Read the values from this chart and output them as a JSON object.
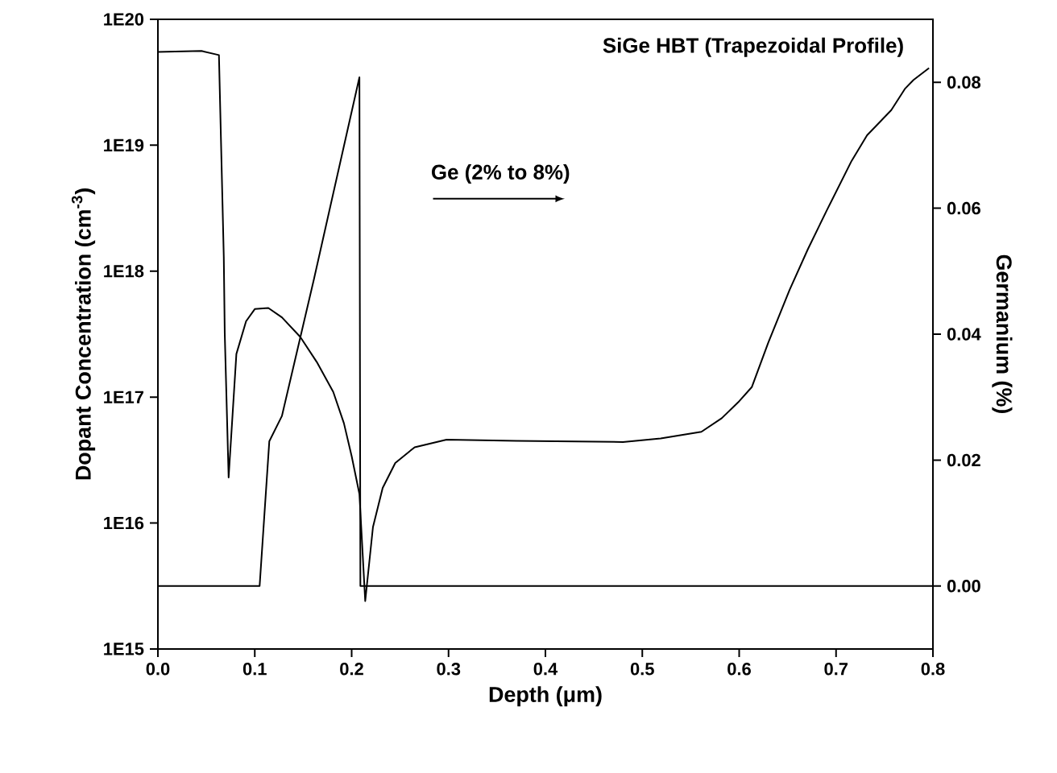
{
  "chart_data": {
    "type": "line",
    "title": "SiGe HBT (Trapezoidal Profile)",
    "xlabel": "Depth (μm)",
    "ylabel": "Dopant Concentration (cm$^{-3}$)",
    "y2label": "Germanium (%)",
    "annotations": [
      "Ge (2% to 8%)"
    ],
    "log": "y",
    "line_style": "solid",
    "xlim": [
      0,
      0.8
    ],
    "xticks": [
      {
        "value": 0,
        "label": "0.0"
      },
      0.1,
      0.2,
      0.3,
      0.4,
      0.5,
      0.6,
      0.7,
      0.8
    ],
    "ylim": [
      1000000000000000.0,
      1e+20
    ],
    "yticks": [
      {
        "value": 1000000000000000.0,
        "label": "1E15"
      },
      {
        "value": 1e+16,
        "label": "1E16"
      },
      {
        "value": 1e+17,
        "label": "1E17"
      },
      {
        "value": 1e+18,
        "label": "1E18"
      },
      {
        "value": 1e+19,
        "label": "1E19"
      },
      {
        "value": 1e+20,
        "label": "1E20"
      }
    ],
    "y2lim": [
      -0.01,
      0.09
    ],
    "y2ticks": [
      {
        "value": 0,
        "label": "0.00"
      },
      0.02,
      0.04,
      0.06,
      0.08
    ],
    "series": [
      {
        "color": "#000000",
        "x": [
          0,
          0.045,
          0.063,
          0.068,
          0.069,
          0.073,
          0.081,
          0.091,
          0.1,
          0.114,
          0.128,
          0.147,
          0.164,
          0.181,
          0.192,
          0.2,
          0.208,
          0.214,
          0.222,
          0.232,
          0.245,
          0.265,
          0.298,
          0.37,
          0.48,
          0.519,
          0.561,
          0.582,
          0.599,
          0.613,
          0.63,
          0.652,
          0.671,
          0.691,
          0.716,
          0.732,
          0.757,
          0.771,
          0.78,
          0.796
        ],
        "values": [
          5.5e+19,
          5.6e+19,
          5.2e+19,
          1.3e+18,
          3.2e+17,
          2.3e+16,
          2.2e+17,
          4e+17,
          5e+17,
          5.1e+17,
          4.3e+17,
          3e+17,
          1.9e+17,
          1.1e+17,
          6.2e+16,
          3.4e+16,
          1.7e+16,
          2400000000000000.0,
          9300000000000000.0,
          1.9e+16,
          3e+16,
          4e+16,
          4.6e+16,
          4.5e+16,
          4.4e+16,
          4.7e+16,
          5.3e+16,
          6.8e+16,
          9.1e+16,
          1.2e+17,
          2.7e+17,
          7.1e+17,
          1.5e+18,
          3.1e+18,
          7.5e+18,
          1.2e+19,
          1.9e+19,
          2.8e+19,
          3.3e+19,
          4.1e+19
        ]
      },
      {
        "color": "#000000",
        "axis": "y2",
        "x": [
          0,
          0.105,
          0.115,
          0.128,
          0.161,
          0.208,
          0.209,
          0.8
        ],
        "values": [
          0,
          0,
          0.023,
          0.027,
          0.0487,
          0.0808,
          0,
          0
        ]
      }
    ]
  }
}
